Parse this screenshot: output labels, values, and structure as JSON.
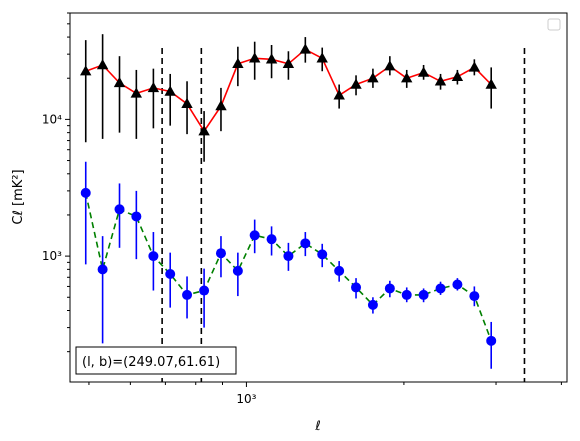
{
  "chart_data": {
    "type": "line",
    "title": "",
    "xlabel": "ℓ",
    "ylabel": "Cℓ  [mK²]",
    "xscale": "log",
    "yscale": "log",
    "xlim": [
      460,
      4100
    ],
    "ylim": [
      120,
      60000
    ],
    "x_ticks": [
      {
        "value": 1000,
        "label": "10³"
      }
    ],
    "y_ticks": [
      {
        "value": 1000,
        "label": "10³"
      },
      {
        "value": 10000,
        "label": "10⁴"
      }
    ],
    "vlines": [
      690,
      820,
      3400
    ],
    "annotation": "(l, b)=(249.07,61.61)",
    "legend": {
      "placement": "upper-right",
      "entries": []
    },
    "series": [
      {
        "color": "#ff0000",
        "marker_color": "#000000",
        "marker": "triangle",
        "linestyle": "solid",
        "points": [
          {
            "x": 493,
            "y": 22500,
            "lo": 6800,
            "hi": 38000
          },
          {
            "x": 531,
            "y": 25000,
            "lo": 7200,
            "hi": 42000
          },
          {
            "x": 572,
            "y": 18500,
            "lo": 8000,
            "hi": 29000
          },
          {
            "x": 616,
            "y": 15500,
            "lo": 7200,
            "hi": 23000
          },
          {
            "x": 664,
            "y": 17000,
            "lo": 8600,
            "hi": 23500
          },
          {
            "x": 715,
            "y": 16000,
            "lo": 9000,
            "hi": 21500
          },
          {
            "x": 770,
            "y": 13000,
            "lo": 7800,
            "hi": 19000
          },
          {
            "x": 830,
            "y": 8200,
            "lo": 4900,
            "hi": 11500
          },
          {
            "x": 894,
            "y": 12500,
            "lo": 8200,
            "hi": 17000
          },
          {
            "x": 963,
            "y": 25500,
            "lo": 17500,
            "hi": 34000
          },
          {
            "x": 1037,
            "y": 28000,
            "lo": 19500,
            "hi": 37000
          },
          {
            "x": 1117,
            "y": 27500,
            "lo": 20000,
            "hi": 35000
          },
          {
            "x": 1203,
            "y": 25500,
            "lo": 19500,
            "hi": 31500
          },
          {
            "x": 1296,
            "y": 32500,
            "lo": 26000,
            "hi": 40000
          },
          {
            "x": 1396,
            "y": 28000,
            "lo": 22500,
            "hi": 33500
          },
          {
            "x": 1504,
            "y": 15000,
            "lo": 12000,
            "hi": 18000
          },
          {
            "x": 1620,
            "y": 18000,
            "lo": 15000,
            "hi": 21000
          },
          {
            "x": 1745,
            "y": 20000,
            "lo": 17000,
            "hi": 23500
          },
          {
            "x": 1880,
            "y": 24500,
            "lo": 21000,
            "hi": 29000
          },
          {
            "x": 2025,
            "y": 20000,
            "lo": 17000,
            "hi": 23000
          },
          {
            "x": 2181,
            "y": 22000,
            "lo": 19500,
            "hi": 25000
          },
          {
            "x": 2350,
            "y": 19000,
            "lo": 16500,
            "hi": 21500
          },
          {
            "x": 2531,
            "y": 20500,
            "lo": 18000,
            "hi": 23000
          },
          {
            "x": 2727,
            "y": 24000,
            "lo": 21000,
            "hi": 27500
          },
          {
            "x": 2937,
            "y": 18000,
            "lo": 12000,
            "hi": 24000
          }
        ]
      },
      {
        "color": "#008000",
        "marker_color": "#0000ff",
        "marker": "circle",
        "linestyle": "dashed",
        "points": [
          {
            "x": 493,
            "y": 2900,
            "lo": 870,
            "hi": 4900
          },
          {
            "x": 531,
            "y": 800,
            "lo": 230,
            "hi": 1400
          },
          {
            "x": 572,
            "y": 2200,
            "lo": 1150,
            "hi": 3400
          },
          {
            "x": 616,
            "y": 1950,
            "lo": 950,
            "hi": 3000
          },
          {
            "x": 664,
            "y": 1000,
            "lo": 560,
            "hi": 1500
          },
          {
            "x": 715,
            "y": 740,
            "lo": 420,
            "hi": 1060
          },
          {
            "x": 770,
            "y": 520,
            "lo": 350,
            "hi": 710
          },
          {
            "x": 830,
            "y": 560,
            "lo": 300,
            "hi": 810
          },
          {
            "x": 894,
            "y": 1050,
            "lo": 700,
            "hi": 1400
          },
          {
            "x": 963,
            "y": 780,
            "lo": 510,
            "hi": 1060
          },
          {
            "x": 1037,
            "y": 1420,
            "lo": 1050,
            "hi": 1850
          },
          {
            "x": 1117,
            "y": 1330,
            "lo": 1010,
            "hi": 1650
          },
          {
            "x": 1203,
            "y": 1000,
            "lo": 780,
            "hi": 1250
          },
          {
            "x": 1296,
            "y": 1240,
            "lo": 1000,
            "hi": 1500
          },
          {
            "x": 1396,
            "y": 1030,
            "lo": 830,
            "hi": 1230
          },
          {
            "x": 1504,
            "y": 780,
            "lo": 650,
            "hi": 920
          },
          {
            "x": 1620,
            "y": 590,
            "lo": 490,
            "hi": 690
          },
          {
            "x": 1745,
            "y": 440,
            "lo": 380,
            "hi": 500
          },
          {
            "x": 1880,
            "y": 580,
            "lo": 500,
            "hi": 660
          },
          {
            "x": 2025,
            "y": 520,
            "lo": 460,
            "hi": 590
          },
          {
            "x": 2181,
            "y": 520,
            "lo": 460,
            "hi": 580
          },
          {
            "x": 2350,
            "y": 580,
            "lo": 520,
            "hi": 650
          },
          {
            "x": 2531,
            "y": 620,
            "lo": 560,
            "hi": 690
          },
          {
            "x": 2727,
            "y": 510,
            "lo": 430,
            "hi": 600
          },
          {
            "x": 2937,
            "y": 240,
            "lo": 150,
            "hi": 330
          }
        ]
      }
    ]
  }
}
